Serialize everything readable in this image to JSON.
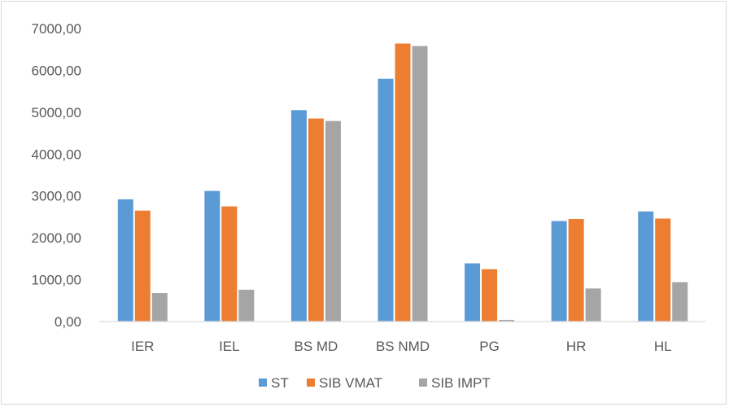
{
  "chart_data": {
    "type": "bar",
    "title": "",
    "xlabel": "",
    "ylabel": "",
    "categories": [
      "IER",
      "IEL",
      "BS MD",
      "BS NMD",
      "PG",
      "HR",
      "HL"
    ],
    "ylim": [
      0,
      7000
    ],
    "yticks": [
      0,
      1000,
      2000,
      3000,
      4000,
      5000,
      6000,
      7000
    ],
    "ytick_labels": [
      "0,00",
      "1000,00",
      "2000,00",
      "3000,00",
      "4000,00",
      "5000,00",
      "6000,00",
      "7000,00"
    ],
    "grid": false,
    "legend_position": "bottom",
    "series": [
      {
        "name": "ST",
        "color": "#5b9bd5",
        "values": [
          2920,
          3120,
          5050,
          5800,
          1390,
          2400,
          2630
        ]
      },
      {
        "name": "SIB VMAT",
        "color": "#ed7d31",
        "values": [
          2650,
          2750,
          4850,
          6640,
          1250,
          2450,
          2460
        ]
      },
      {
        "name": "SIB IMPT",
        "color": "#a5a5a5",
        "values": [
          680,
          760,
          4790,
          6580,
          40,
          790,
          940
        ]
      }
    ]
  }
}
